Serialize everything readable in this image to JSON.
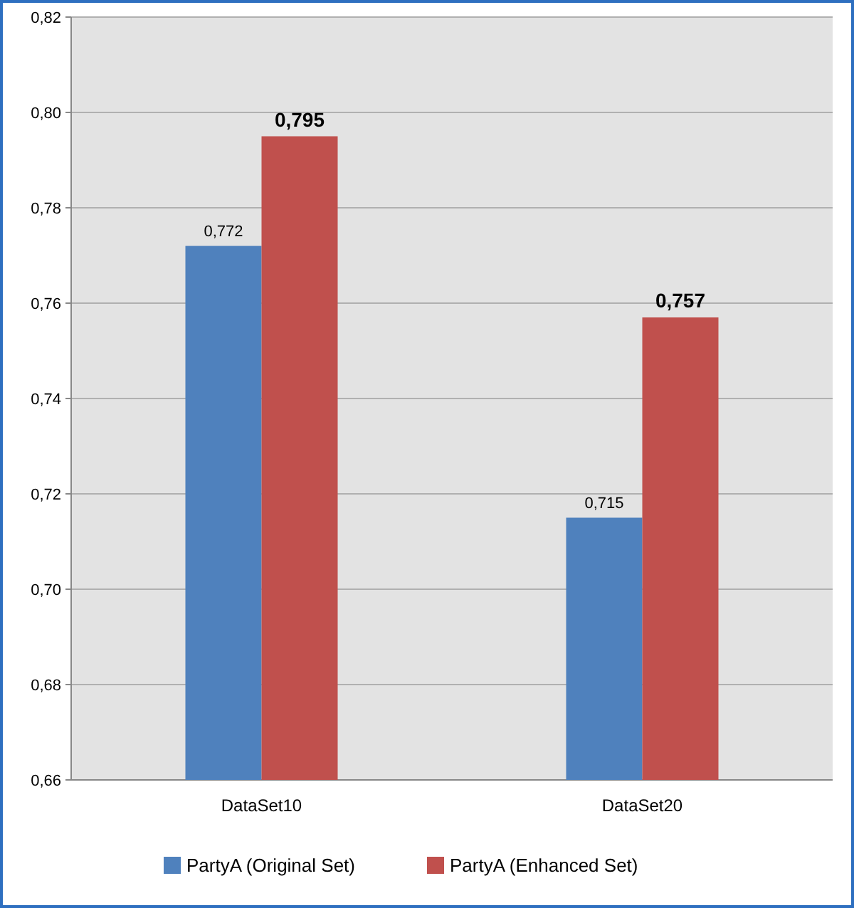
{
  "chart_data": {
    "type": "bar",
    "categories": [
      "DataSet10",
      "DataSet20"
    ],
    "series": [
      {
        "name": "PartyA (Original Set)",
        "color": "#4f81bd",
        "values": [
          0.772,
          0.715
        ],
        "value_labels": [
          "0,772",
          "0,715"
        ]
      },
      {
        "name": "PartyA (Enhanced Set)",
        "color": "#c0504d",
        "values": [
          0.795,
          0.757
        ],
        "value_labels": [
          "0,795",
          "0,757"
        ]
      }
    ],
    "ylim": [
      0.66,
      0.82
    ],
    "yticks": [
      {
        "value": 0.66,
        "label": "0,66"
      },
      {
        "value": 0.68,
        "label": "0,68"
      },
      {
        "value": 0.7,
        "label": "0,70"
      },
      {
        "value": 0.72,
        "label": "0,72"
      },
      {
        "value": 0.74,
        "label": "0,74"
      },
      {
        "value": 0.76,
        "label": "0,76"
      },
      {
        "value": 0.78,
        "label": "0,78"
      },
      {
        "value": 0.8,
        "label": "0,80"
      },
      {
        "value": 0.82,
        "label": "0,82"
      }
    ],
    "grid": "y",
    "legend": "bottom"
  }
}
